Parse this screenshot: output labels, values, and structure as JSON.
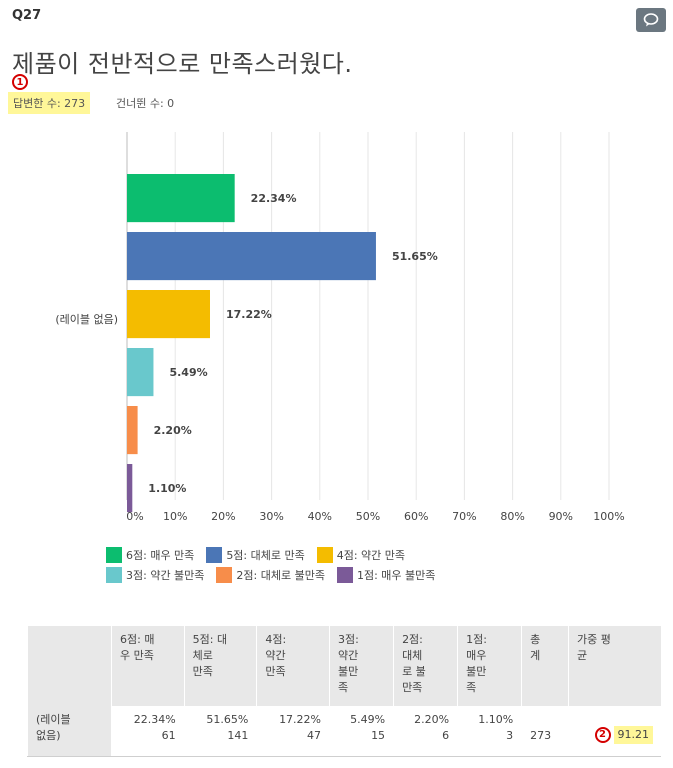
{
  "question": {
    "number": "Q27",
    "title": "제품이 전반적으로 만족스러웠다.",
    "answered": "답변한 수: 273",
    "skipped": "건너뛴 수: 0",
    "marker1": "1",
    "marker2": "2"
  },
  "colors": {
    "s6": "#0cbd6f",
    "s5": "#4b76b6",
    "s4": "#f4bc00",
    "s3": "#69c8cc",
    "s2": "#f78d4a",
    "s1": "#7b5a98"
  },
  "chart_data": {
    "type": "bar",
    "orientation": "horizontal",
    "category_label": "(레이블 없음)",
    "series": [
      {
        "name": "6점: 매우 만족",
        "value": 22.34,
        "label": "22.34%"
      },
      {
        "name": "5점: 대체로 만족",
        "value": 51.65,
        "label": "51.65%"
      },
      {
        "name": "4점: 약간 만족",
        "value": 17.22,
        "label": "17.22%"
      },
      {
        "name": "3점: 약간 불만족",
        "value": 5.49,
        "label": "5.49%"
      },
      {
        "name": "2점: 대체로 불만족",
        "value": 2.2,
        "label": "2.20%"
      },
      {
        "name": "1점: 매우 불만족",
        "value": 1.1,
        "label": "1.10%"
      }
    ],
    "xlim": [
      0,
      100
    ],
    "xticks": [
      "0%",
      "10%",
      "20%",
      "30%",
      "40%",
      "50%",
      "60%",
      "70%",
      "80%",
      "90%",
      "100%"
    ],
    "grid": true,
    "legend_position": "bottom"
  },
  "legend": [
    {
      "label": "6점: 매우 만족"
    },
    {
      "label": "5점: 대체로 만족"
    },
    {
      "label": "4점: 약간 만족"
    },
    {
      "label": "3점: 약간 불만족"
    },
    {
      "label": "2점: 대체로 불만족"
    },
    {
      "label": "1점: 매우 불만족"
    }
  ],
  "table": {
    "headers": {
      "c6": [
        "6점: 매",
        "우 만족"
      ],
      "c5": [
        "5점: 대",
        "체로",
        "만족"
      ],
      "c4": [
        "4점:",
        "약간",
        "만족"
      ],
      "c3": [
        "3점:",
        "약간",
        "불만",
        "족"
      ],
      "c2": [
        "2점:",
        "대체",
        "로 불",
        "만족"
      ],
      "c1": [
        "1점:",
        "매우",
        "불만",
        "족"
      ],
      "total": [
        "총",
        "계"
      ],
      "avg": [
        "가중 평",
        "균"
      ]
    },
    "row_label": [
      "(레이블",
      "없음)"
    ],
    "cells": [
      {
        "pct": "22.34%",
        "count": "61"
      },
      {
        "pct": "51.65%",
        "count": "141"
      },
      {
        "pct": "17.22%",
        "count": "47"
      },
      {
        "pct": "5.49%",
        "count": "15"
      },
      {
        "pct": "2.20%",
        "count": "6"
      },
      {
        "pct": "1.10%",
        "count": "3"
      }
    ],
    "total": "273",
    "weighted_avg": "91.21"
  }
}
